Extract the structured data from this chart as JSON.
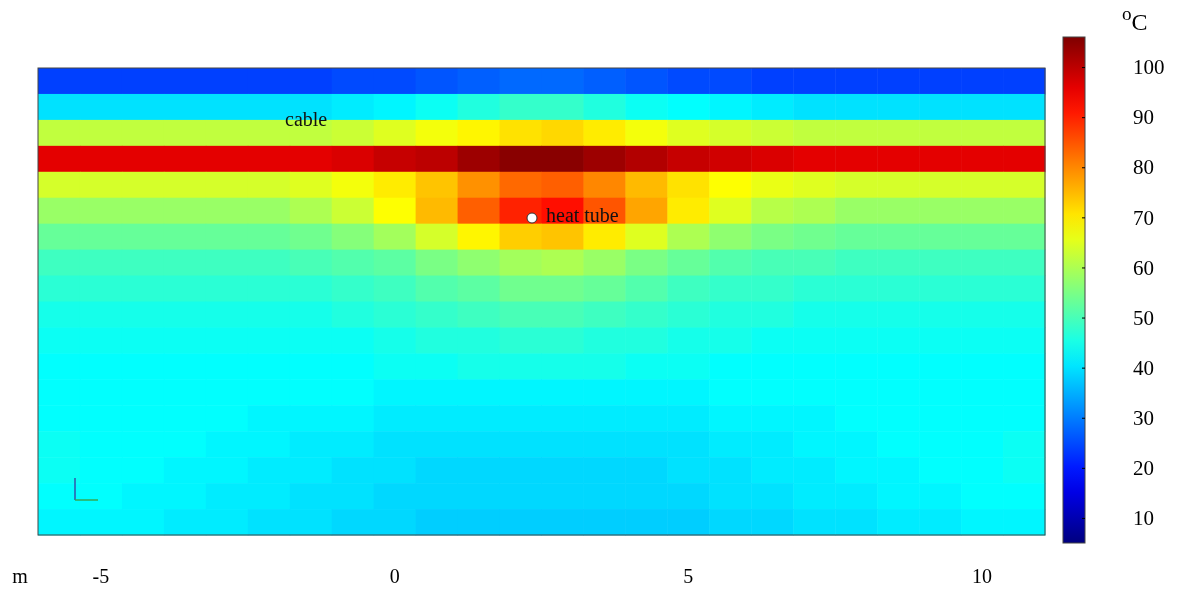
{
  "chart_data": {
    "type": "heatmap",
    "xlabel": "m",
    "clabel": "$^{o}$C",
    "categories": [
      null,
      "-5",
      null,
      null,
      null,
      null,
      null,
      null,
      "0",
      null,
      null,
      null,
      null,
      null,
      null,
      "5",
      null,
      null,
      null,
      null,
      null,
      null,
      "10",
      null
    ],
    "y_categories": [
      null,
      null,
      null,
      null,
      null,
      null,
      null,
      null,
      null,
      null,
      null,
      null,
      null,
      null,
      null,
      null,
      null,
      null
    ],
    "cells": [
      [
        24,
        24,
        24,
        24,
        24,
        24,
        24,
        25,
        25,
        26,
        27,
        28,
        28,
        27,
        26,
        25,
        25,
        24,
        24,
        24,
        24,
        24,
        24,
        24
      ],
      [
        40,
        40,
        40,
        40,
        40,
        40,
        40,
        41,
        42,
        44,
        46,
        48,
        48,
        46,
        44,
        43,
        42,
        41,
        40,
        40,
        40,
        40,
        40,
        40
      ],
      [
        62,
        62,
        62,
        62,
        62,
        62,
        62,
        63,
        65,
        67,
        69,
        71,
        72,
        70,
        67,
        65,
        64,
        63,
        62,
        62,
        62,
        62,
        62,
        62
      ],
      [
        96,
        96,
        96,
        96,
        96,
        96,
        96,
        97,
        99,
        100,
        103,
        105,
        105,
        103,
        101,
        99,
        98,
        97,
        96,
        96,
        96,
        96,
        96,
        96
      ],
      [
        64,
        64,
        64,
        64,
        64,
        64,
        65,
        67,
        70,
        74,
        79,
        83,
        84,
        80,
        75,
        71,
        68,
        66,
        65,
        64,
        64,
        64,
        64,
        64
      ],
      [
        58,
        58,
        58,
        58,
        58,
        58,
        60,
        63,
        68,
        75,
        84,
        90,
        92,
        85,
        77,
        70,
        65,
        61,
        60,
        58,
        58,
        58,
        58,
        58
      ],
      [
        53,
        53,
        53,
        53,
        53,
        53,
        54,
        56,
        59,
        64,
        69,
        73,
        74,
        70,
        65,
        60,
        57,
        55,
        54,
        53,
        53,
        53,
        53,
        53
      ],
      [
        49,
        49,
        49,
        49,
        49,
        49,
        50,
        51,
        52,
        55,
        57,
        59,
        60,
        58,
        55,
        53,
        51,
        50,
        50,
        49,
        49,
        49,
        49,
        49
      ],
      [
        47,
        47,
        47,
        47,
        47,
        47,
        47,
        48,
        49,
        51,
        52,
        54,
        54,
        53,
        51,
        49,
        48,
        48,
        47,
        47,
        47,
        47,
        47,
        47
      ],
      [
        45,
        45,
        45,
        45,
        45,
        45,
        45,
        46,
        47,
        48,
        49,
        50,
        50,
        49,
        48,
        47,
        46,
        46,
        45,
        45,
        45,
        45,
        45,
        45
      ],
      [
        44,
        44,
        44,
        44,
        44,
        44,
        44,
        44,
        45,
        46,
        46,
        47,
        47,
        46,
        46,
        45,
        45,
        44,
        44,
        44,
        44,
        44,
        44,
        44
      ],
      [
        43,
        43,
        43,
        43,
        43,
        43,
        43,
        43,
        44,
        44,
        45,
        45,
        45,
        45,
        44,
        44,
        43,
        43,
        43,
        43,
        43,
        43,
        43,
        43
      ],
      [
        43,
        43,
        43,
        43,
        43,
        43,
        43,
        43,
        42,
        42,
        42,
        42,
        42,
        42,
        42,
        42,
        43,
        43,
        43,
        43,
        43,
        43,
        43,
        43
      ],
      [
        43,
        43,
        43,
        43,
        43,
        42,
        42,
        42,
        41,
        41,
        41,
        41,
        41,
        41,
        41,
        41,
        42,
        42,
        42,
        43,
        43,
        43,
        43,
        43
      ],
      [
        44,
        43,
        43,
        43,
        42,
        42,
        41,
        41,
        40,
        40,
        40,
        40,
        40,
        40,
        40,
        40,
        41,
        41,
        42,
        42,
        43,
        43,
        43,
        44
      ],
      [
        44,
        43,
        43,
        42,
        42,
        41,
        41,
        40,
        40,
        39,
        39,
        39,
        39,
        39,
        39,
        40,
        40,
        41,
        41,
        42,
        42,
        43,
        43,
        44
      ],
      [
        43,
        43,
        42,
        42,
        41,
        41,
        40,
        40,
        39,
        39,
        39,
        39,
        39,
        39,
        39,
        39,
        40,
        40,
        41,
        41,
        42,
        42,
        43,
        43
      ],
      [
        42,
        42,
        42,
        41,
        41,
        40,
        40,
        39,
        39,
        38,
        38,
        38,
        38,
        38,
        38,
        38,
        39,
        39,
        40,
        40,
        41,
        41,
        42,
        42
      ]
    ],
    "clim": [
      5,
      106
    ],
    "cticks": [
      10,
      20,
      30,
      40,
      50,
      60,
      70,
      80,
      90,
      100
    ],
    "annotations": [
      "cable",
      "heat tube"
    ]
  }
}
